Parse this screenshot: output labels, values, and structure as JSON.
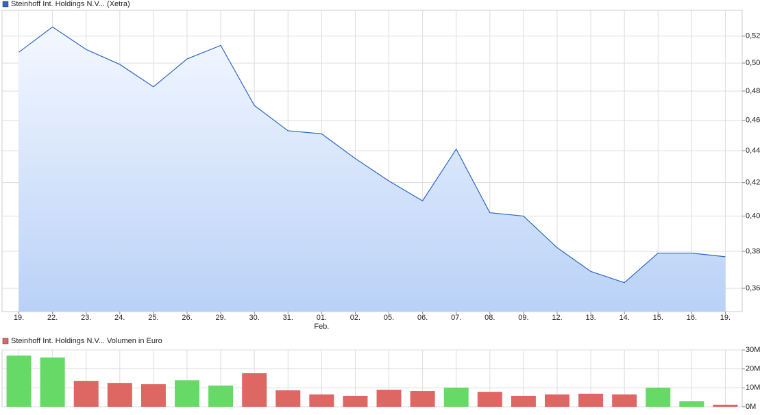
{
  "chart_data": [
    {
      "type": "area",
      "categories": [
        "19.",
        "22.",
        "23.",
        "24.",
        "25.",
        "26.",
        "29.",
        "30.",
        "31.",
        "01.",
        "02.",
        "05.",
        "06.",
        "07.",
        "08.",
        "09.",
        "12.",
        "13.",
        "14.",
        "15.",
        "16.",
        "19."
      ],
      "category_sublabels": [
        null,
        null,
        null,
        null,
        null,
        null,
        null,
        null,
        null,
        "Feb.",
        null,
        null,
        null,
        null,
        null,
        null,
        null,
        null,
        null,
        null,
        null,
        null
      ],
      "series": [
        {
          "name": "Steinhoff Int. Holdings N.V... (Xetra)",
          "color": "#2a66c4",
          "values": [
            0.508,
            0.527,
            0.51,
            0.499,
            0.483,
            0.503,
            0.513,
            0.47,
            0.453,
            0.451,
            0.435,
            0.421,
            0.409,
            0.441,
            0.402,
            0.4,
            0.382,
            0.369,
            0.363,
            0.379,
            0.379,
            0.377
          ]
        }
      ],
      "log_y": true,
      "grid": true,
      "ylim": [
        0.348,
        0.54
      ],
      "yticks": [
        {
          "value": 0.36,
          "label": "0,36"
        },
        {
          "value": 0.38,
          "label": "0,38"
        },
        {
          "value": 0.4,
          "label": "0,40"
        },
        {
          "value": 0.42,
          "label": "0,42"
        },
        {
          "value": 0.44,
          "label": "0,44"
        },
        {
          "value": 0.46,
          "label": "0,46"
        },
        {
          "value": 0.48,
          "label": "0,48"
        },
        {
          "value": 0.5,
          "label": "0,50"
        },
        {
          "value": 0.52,
          "label": "0,52"
        }
      ]
    },
    {
      "type": "bar",
      "series": [
        {
          "name": "Steinhoff Int. Holdings N.V... Volumen in Euro",
          "color": "#de6764",
          "values": [
            27000000,
            26000000,
            13700000,
            12600000,
            11900000,
            14000000,
            11200000,
            17700000,
            8700000,
            6500000,
            5800000,
            9000000,
            8300000,
            10100000,
            7900000,
            5800000,
            6500000,
            6900000,
            6500000,
            10100000,
            2900000,
            1100000
          ],
          "colors": [
            "#66d966",
            "#66d966",
            "#de6764",
            "#de6764",
            "#de6764",
            "#66d966",
            "#66d966",
            "#de6764",
            "#de6764",
            "#de6764",
            "#de6764",
            "#de6764",
            "#de6764",
            "#66d966",
            "#de6764",
            "#de6764",
            "#de6764",
            "#de6764",
            "#de6764",
            "#66d966",
            "#66d966",
            "#de6764"
          ]
        }
      ],
      "grid": true,
      "ylim": [
        0,
        30000000
      ],
      "yticks": [
        {
          "value": 0,
          "label": "0M"
        },
        {
          "value": 10000000,
          "label": "10M"
        },
        {
          "value": 20000000,
          "label": "20M"
        },
        {
          "value": 30000000,
          "label": "30M"
        }
      ]
    }
  ]
}
